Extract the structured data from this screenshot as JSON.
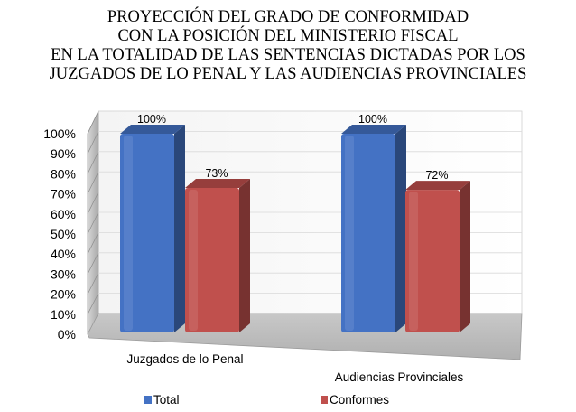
{
  "chart_data": {
    "type": "bar",
    "title_lines": [
      "PROYECCIÓN DEL GRADO DE CONFORMIDAD",
      "CON LA POSICIÓN DEL MINISTERIO FISCAL",
      "EN LA TOTALIDAD DE LAS SENTENCIAS DICTADAS POR LOS",
      "JUZGADOS DE LO PENAL Y LAS AUDIENCIAS PROVINCIALES"
    ],
    "categories": [
      "Juzgados de lo Penal",
      "Audiencias Provinciales"
    ],
    "series": [
      {
        "name": "Total",
        "values": [
          100,
          100
        ],
        "labels": [
          "100%",
          "100%"
        ],
        "color": "#4472C4"
      },
      {
        "name": "Conformes",
        "values": [
          73,
          72
        ],
        "labels": [
          "73%",
          "72%"
        ],
        "color": "#C0504D"
      }
    ],
    "ylim": [
      0,
      100
    ],
    "y_ticks": [
      "0%",
      "10%",
      "20%",
      "30%",
      "40%",
      "50%",
      "60%",
      "70%",
      "80%",
      "90%",
      "100%"
    ],
    "legend_position": "bottom",
    "grid": true,
    "style": "3d-column"
  }
}
